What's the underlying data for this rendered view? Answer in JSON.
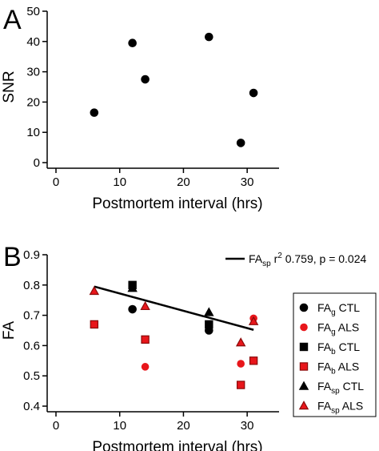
{
  "panels": {
    "a": {
      "letter": "A"
    },
    "b": {
      "letter": "B"
    }
  },
  "chart_data": [
    {
      "type": "scatter",
      "xlabel": "Postmortem interval (hrs)",
      "ylabel": "SNR",
      "xlim": [
        0,
        35
      ],
      "ylim": [
        0,
        50
      ],
      "xticks": [
        "0",
        "10",
        "20",
        "30"
      ],
      "yticks": [
        "0",
        "10",
        "20",
        "30",
        "40",
        "50"
      ],
      "grid": false,
      "series": [
        {
          "color": "#000000",
          "marker": "circle",
          "points": [
            [
              6,
              16.5
            ],
            [
              12,
              39.5
            ],
            [
              14,
              27.5
            ],
            [
              24,
              41.5
            ],
            [
              29,
              6.5
            ],
            [
              31,
              23
            ]
          ]
        }
      ]
    },
    {
      "type": "scatter",
      "xlabel": "Postmortem interval (hrs)",
      "ylabel": "FA",
      "xlim": [
        0,
        35
      ],
      "ylim": [
        0.4,
        0.9
      ],
      "xticks": [
        "0",
        "10",
        "20",
        "30"
      ],
      "yticks": [
        "0.4",
        "0.5",
        "0.6",
        "0.7",
        "0.8",
        "0.9"
      ],
      "grid": false,
      "legend_position": "right",
      "series": [
        {
          "base": "FA",
          "sub": "g",
          "group": "CTL",
          "marker": "circle",
          "color": "#000000",
          "points": [
            [
              12,
              0.72
            ],
            [
              24,
              0.65
            ]
          ]
        },
        {
          "base": "FA",
          "sub": "g",
          "group": "ALS",
          "marker": "circle",
          "color": "#e8161b",
          "points": [
            [
              14,
              0.53
            ],
            [
              29,
              0.54
            ],
            [
              31,
              0.69
            ]
          ]
        },
        {
          "base": "FA",
          "sub": "b",
          "group": "CTL",
          "marker": "square",
          "color": "#000000",
          "points": [
            [
              12,
              0.8
            ],
            [
              24,
              0.67
            ]
          ]
        },
        {
          "base": "FA",
          "sub": "b",
          "group": "ALS",
          "marker": "square",
          "color": "#e8161b",
          "points": [
            [
              6,
              0.67
            ],
            [
              14,
              0.62
            ],
            [
              29,
              0.47
            ],
            [
              31,
              0.55
            ]
          ]
        },
        {
          "base": "FA",
          "sub": "sp",
          "group": "CTL",
          "marker": "triangle",
          "color": "#000000",
          "points": [
            [
              12,
              0.79
            ],
            [
              24,
              0.71
            ]
          ]
        },
        {
          "base": "FA",
          "sub": "sp",
          "group": "ALS",
          "marker": "triangle",
          "color": "#e8161b",
          "points": [
            [
              6,
              0.78
            ],
            [
              14,
              0.73
            ],
            [
              29,
              0.61
            ],
            [
              31,
              0.68
            ]
          ]
        }
      ],
      "fit_line": {
        "x": [
          6,
          31
        ],
        "y": [
          0.795,
          0.652
        ],
        "label_base": "FA",
        "label_sub": "sp",
        "label_r": " r",
        "label_sup": "2",
        "label_rest": " 0.759, p = 0.024"
      }
    }
  ]
}
